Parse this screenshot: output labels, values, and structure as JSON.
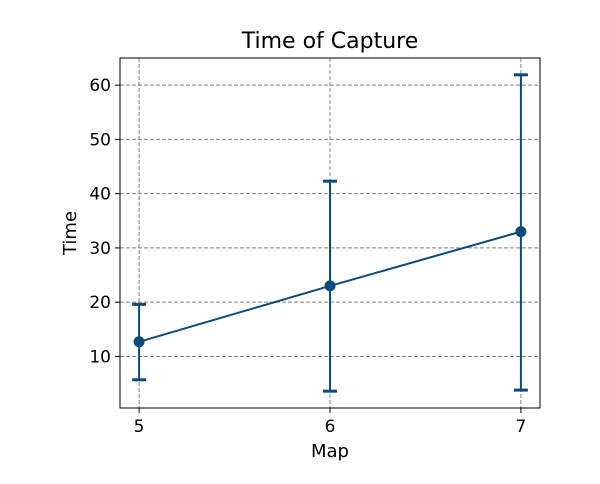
{
  "chart_data": {
    "type": "line",
    "title": "Time of Capture",
    "xlabel": "Map",
    "ylabel": "Time",
    "x": [
      5,
      6,
      7
    ],
    "xticks": [
      5,
      6,
      7
    ],
    "yticks": [
      10,
      20,
      30,
      40,
      50,
      60
    ],
    "xlim": [
      4.9,
      7.1
    ],
    "ylim": [
      0.5,
      65
    ],
    "grid": true,
    "series": [
      {
        "values": [
          12.7,
          23.0,
          33.0
        ],
        "error_lower": [
          5.7,
          3.6,
          3.8
        ],
        "error_upper": [
          19.6,
          42.3,
          61.9
        ],
        "color": "#0b4a7d",
        "marker": "circle"
      }
    ]
  }
}
